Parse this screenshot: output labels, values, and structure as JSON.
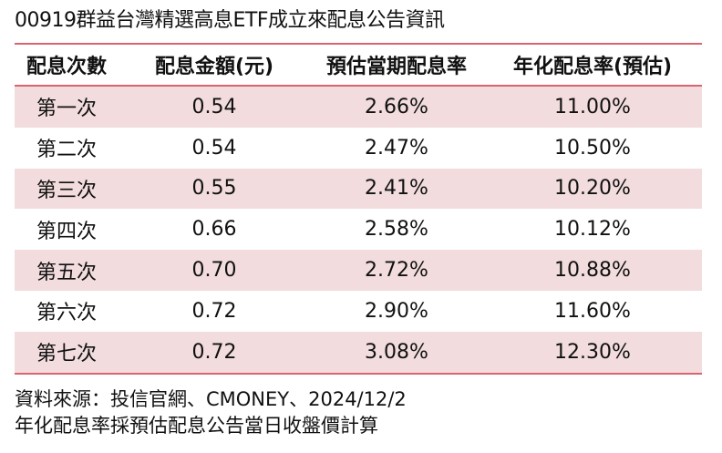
{
  "title": "00919群益台灣精選高息ETF成立來配息公告資訊",
  "table": {
    "headers": [
      "配息次數",
      "配息金額(元)",
      "預估當期配息率",
      "年化配息率(預估)"
    ],
    "rows": [
      [
        "第一次",
        "0.54",
        "2.66%",
        "11.00%"
      ],
      [
        "第二次",
        "0.54",
        "2.47%",
        "10.50%"
      ],
      [
        "第三次",
        "0.55",
        "2.41%",
        "10.20%"
      ],
      [
        "第四次",
        "0.66",
        "2.58%",
        "10.12%"
      ],
      [
        "第五次",
        "0.70",
        "2.72%",
        "10.88%"
      ],
      [
        "第六次",
        "0.72",
        "2.90%",
        "11.60%"
      ],
      [
        "第七次",
        "0.72",
        "3.08%",
        "12.30%"
      ]
    ]
  },
  "footer": {
    "source": "資料來源：投信官網、CMONEY、2024/12/2",
    "note": "年化配息率採預估配息公告當日收盤價計算"
  },
  "colors": {
    "rule": "#d9666e",
    "shaded_row": "#f2dcdd"
  }
}
